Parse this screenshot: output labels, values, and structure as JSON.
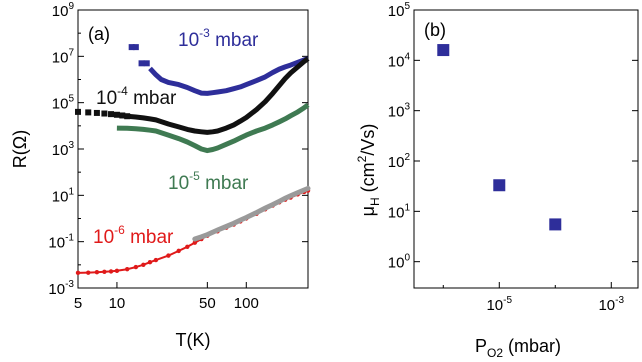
{
  "chart_data": [
    {
      "panel_label": "(a)",
      "type": "line",
      "xlabel": "T(K)",
      "ylabel": "R(Ω)",
      "x_scale": "log",
      "y_scale": "log",
      "xlim": [
        5,
        300
      ],
      "ylim": [
        0.001,
        1000000000
      ],
      "x_ticks": [
        5,
        10,
        50,
        100
      ],
      "x_tick_labels": [
        "5",
        "10",
        "50",
        "100"
      ],
      "y_ticks": [
        0.001,
        0.1,
        10,
        1000,
        100000,
        10000000,
        1000000000
      ],
      "y_tick_labels": [
        {
          "base": "10",
          "exp": "-3"
        },
        {
          "base": "10",
          "exp": "-1"
        },
        {
          "base": "10",
          "exp": "1"
        },
        {
          "base": "10",
          "exp": "3"
        },
        {
          "base": "10",
          "exp": "5"
        },
        {
          "base": "10",
          "exp": "7"
        },
        {
          "base": "10",
          "exp": "9"
        }
      ],
      "series": [
        {
          "name": "10^-3 mbar",
          "label_base": "10",
          "label_exp": "-3",
          "label_unit": " mbar",
          "color": "#2e2e9a",
          "x": [
            13,
            14,
            15.5,
            17,
            18,
            20,
            22,
            25,
            30,
            35,
            40,
            45,
            50,
            55,
            60,
            70,
            80,
            90,
            100,
            120,
            140,
            160,
            180,
            200,
            220,
            250,
            280,
            300
          ],
          "y": [
            25000000,
            25000000,
            5000000,
            5000000,
            3000000,
            1600000,
            1000000,
            750000,
            600000,
            450000,
            330000,
            260000,
            250000,
            270000,
            290000,
            330000,
            400000,
            480000,
            600000,
            900000,
            1300000,
            2000000,
            2800000,
            3500000,
            4200000,
            5500000,
            7000000,
            8000000
          ]
        },
        {
          "name": "10^-4 mbar",
          "label_base": "10",
          "label_exp": "-4",
          "label_unit": " mbar",
          "color": "#111111",
          "x": [
            5,
            6,
            7,
            8,
            9,
            10,
            11,
            12,
            14,
            16,
            18,
            20,
            25,
            30,
            35,
            40,
            45,
            50,
            55,
            60,
            70,
            80,
            90,
            100,
            120,
            140,
            160,
            180,
            200,
            220,
            250,
            280,
            300
          ],
          "y": [
            40000,
            38000,
            36000,
            34000,
            32000,
            30000,
            28000,
            26000,
            24000,
            22000,
            20000,
            18000,
            12000,
            9000,
            7000,
            6000,
            5500,
            5200,
            5500,
            6000,
            8000,
            11000,
            16000,
            23000,
            50000,
            110000,
            250000,
            550000,
            1100000,
            1900000,
            3500000,
            6000000,
            8000000
          ]
        },
        {
          "name": "10^-5 mbar",
          "label_base": "10",
          "label_exp": "-5",
          "label_unit": " mbar",
          "color": "#3f7a52",
          "x": [
            10,
            12,
            14,
            16,
            18,
            20,
            25,
            30,
            35,
            40,
            45,
            50,
            55,
            60,
            70,
            80,
            90,
            100,
            120,
            140,
            160,
            180,
            200,
            220,
            250,
            280,
            300
          ],
          "y": [
            8000,
            7800,
            7500,
            7000,
            6500,
            6000,
            4000,
            2800,
            2000,
            1400,
            1000,
            850,
            950,
            1100,
            1600,
            2200,
            3000,
            4000,
            6000,
            8000,
            11000,
            15000,
            20000,
            27000,
            40000,
            60000,
            80000
          ]
        },
        {
          "name": "10^-6 mbar",
          "label_base": "10",
          "label_exp": "-6",
          "label_unit": " mbar",
          "color": "#e01a1a",
          "x": [
            5,
            6,
            7,
            8,
            9,
            10,
            12,
            14,
            16,
            18,
            20,
            25,
            30,
            35,
            40,
            45,
            50,
            60,
            70,
            80,
            90,
            100,
            120,
            140,
            160,
            180,
            200,
            220,
            250,
            280,
            300
          ],
          "y": [
            0.0045,
            0.0046,
            0.0048,
            0.005,
            0.0052,
            0.0055,
            0.0065,
            0.008,
            0.01,
            0.013,
            0.016,
            0.025,
            0.04,
            0.06,
            0.09,
            0.13,
            0.18,
            0.28,
            0.4,
            0.55,
            0.75,
            1,
            1.6,
            2.5,
            3.6,
            5,
            6.5,
            8,
            11,
            14,
            16
          ]
        },
        {
          "name": "fit",
          "color": "#9a9a9a",
          "x": [
            40,
            45,
            50,
            60,
            70,
            80,
            90,
            100,
            120,
            140,
            160,
            180,
            200,
            220,
            250,
            280,
            300
          ],
          "y": [
            0.13,
            0.16,
            0.2,
            0.32,
            0.45,
            0.62,
            0.85,
            1.1,
            1.8,
            2.8,
            4,
            5.5,
            7.5,
            9.5,
            13,
            17,
            20
          ]
        }
      ]
    },
    {
      "panel_label": "(b)",
      "type": "scatter",
      "xlabel": "P_O2 (mbar)",
      "xlabel_main": "P",
      "xlabel_sub": "O2",
      "xlabel_rest": " (mbar)",
      "ylabel": "μ_H (cm²/Vs)",
      "ylabel_main": "μ",
      "ylabel_sub": "H",
      "ylabel_rest": " (cm",
      "ylabel_sup": "2",
      "ylabel_end": "/Vs)",
      "x_scale": "log",
      "y_scale": "log",
      "xlim": [
        3e-07,
        0.003
      ],
      "ylim": [
        0.3,
        100000
      ],
      "x_ticks": [
        1e-05,
        0.001
      ],
      "x_tick_labels": [
        {
          "base": "10",
          "exp": "-5"
        },
        {
          "base": "10",
          "exp": "-3"
        }
      ],
      "y_ticks": [
        1,
        10,
        100,
        1000,
        10000,
        100000
      ],
      "y_tick_labels": [
        {
          "base": "10",
          "exp": "0"
        },
        {
          "base": "10",
          "exp": "1"
        },
        {
          "base": "10",
          "exp": "2"
        },
        {
          "base": "10",
          "exp": "3"
        },
        {
          "base": "10",
          "exp": "4"
        },
        {
          "base": "10",
          "exp": "5"
        }
      ],
      "color": "#2e2e9a",
      "points": [
        {
          "x": 1e-06,
          "y": 16000
        },
        {
          "x": 1e-05,
          "y": 33
        },
        {
          "x": 0.0001,
          "y": 5.5
        }
      ]
    }
  ]
}
